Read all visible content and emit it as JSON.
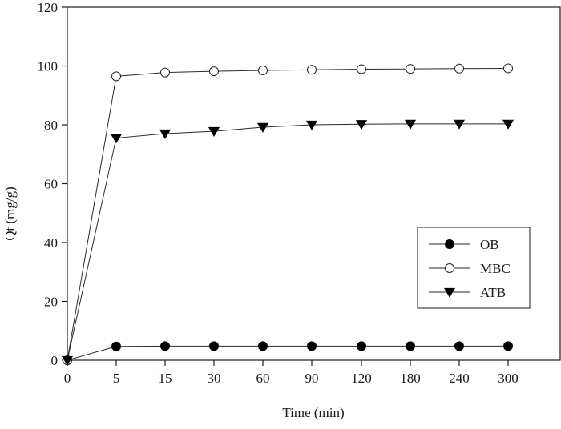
{
  "chart_data": {
    "type": "line",
    "xlabel": "Time (min)",
    "ylabel": "Qt (mg/g)",
    "categories": [
      "0",
      "5",
      "15",
      "30",
      "60",
      "90",
      "120",
      "180",
      "240",
      "300"
    ],
    "ylim": [
      0,
      120
    ],
    "yticks": [
      "0",
      "20",
      "40",
      "60",
      "80",
      "100",
      "120"
    ],
    "grid": false,
    "legend_position": "bottom-right",
    "series": [
      {
        "name": "OB",
        "marker": "filled-circle",
        "values": [
          0,
          4.7,
          4.8,
          4.8,
          4.8,
          4.8,
          4.8,
          4.8,
          4.8,
          4.8
        ]
      },
      {
        "name": "MBC",
        "marker": "open-circle",
        "values": [
          0,
          96.5,
          97.8,
          98.2,
          98.5,
          98.7,
          98.9,
          99.0,
          99.1,
          99.2
        ]
      },
      {
        "name": "ATB",
        "marker": "filled-triangle-down",
        "values": [
          0,
          75.5,
          77.0,
          77.8,
          79.2,
          80.0,
          80.2,
          80.3,
          80.3,
          80.3
        ]
      }
    ]
  }
}
